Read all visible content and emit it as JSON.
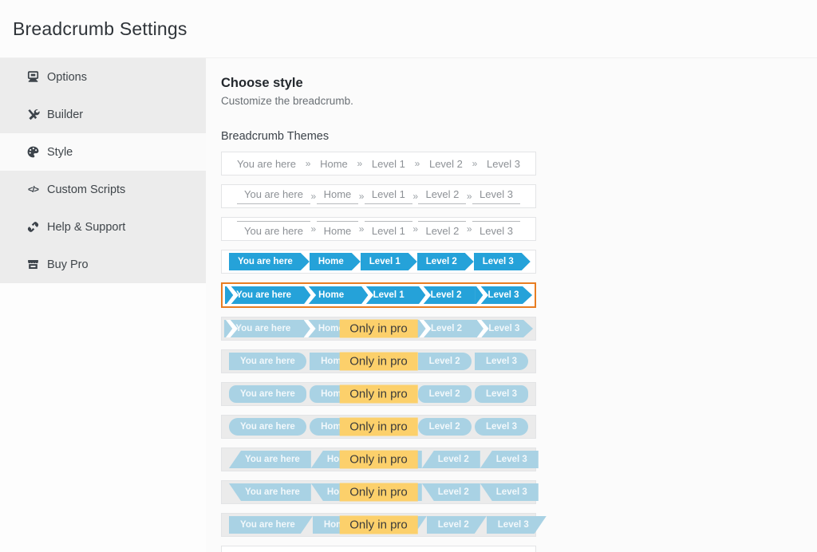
{
  "window": {
    "title": "Breadcrumb Settings"
  },
  "sidebar": {
    "items": [
      {
        "id": "options",
        "label": "Options",
        "icon": "options-icon",
        "active": false
      },
      {
        "id": "builder",
        "label": "Builder",
        "icon": "builder-icon",
        "active": false
      },
      {
        "id": "style",
        "label": "Style",
        "icon": "style-icon",
        "active": true
      },
      {
        "id": "custom-scripts",
        "label": "Custom Scripts",
        "icon": "custom-scripts-icon",
        "active": false
      },
      {
        "id": "help-support",
        "label": "Help & Support",
        "icon": "help-support-icon",
        "active": false
      },
      {
        "id": "buy-pro",
        "label": "Buy Pro",
        "icon": "buy-pro-icon",
        "active": false
      }
    ]
  },
  "main": {
    "heading": "Choose style",
    "subheading": "Customize the breadcrumb.",
    "themes_label": "Breadcrumb Themes",
    "breadcrumb_items": [
      "You are here",
      "Home",
      "Level 1",
      "Level 2",
      "Level 3"
    ],
    "separator": "»",
    "pro_badge_label": "Only in pro",
    "themes": [
      {
        "id": 1,
        "style": "plain",
        "pro": false,
        "selected": false
      },
      {
        "id": 2,
        "style": "underline",
        "pro": false,
        "selected": false
      },
      {
        "id": 3,
        "style": "overline",
        "pro": false,
        "selected": false
      },
      {
        "id": 4,
        "style": "arrow",
        "pro": false,
        "selected": false
      },
      {
        "id": 5,
        "style": "ribbon",
        "pro": false,
        "selected": true
      },
      {
        "id": 6,
        "style": "ribbon",
        "pro": true,
        "selected": false
      },
      {
        "id": 7,
        "style": "round-right",
        "pro": true,
        "selected": false
      },
      {
        "id": 8,
        "style": "rounded",
        "pro": true,
        "selected": false
      },
      {
        "id": 9,
        "style": "pill",
        "pro": true,
        "selected": false
      },
      {
        "id": 10,
        "style": "slant-left-up",
        "pro": true,
        "selected": false
      },
      {
        "id": 11,
        "style": "slant-left-down",
        "pro": true,
        "selected": false
      },
      {
        "id": 12,
        "style": "slant-right",
        "pro": true,
        "selected": false
      },
      {
        "id": 13,
        "style": "plain",
        "pro": false,
        "selected": false
      }
    ],
    "colors": {
      "accent_blue": "#25a2d9",
      "pro_blue": "#a9d2e4",
      "badge_yellow": "#fcd06b",
      "selected_border": "#e87d22"
    }
  }
}
